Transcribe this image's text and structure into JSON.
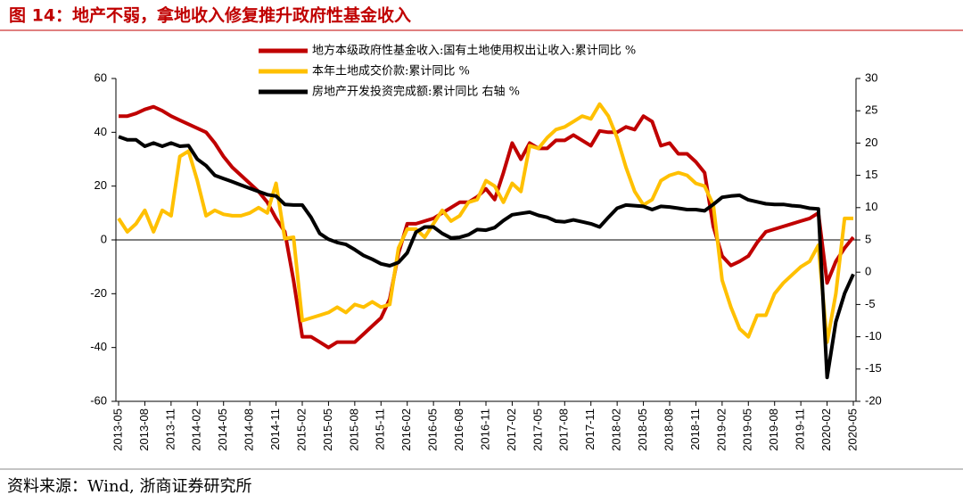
{
  "chart_data": {
    "type": "line",
    "title": "图 14：地产不弱，拿地收入修复推升政府性基金收入",
    "source": "资料来源：Wind, 浙商证券研究所",
    "categories": [
      "2013-05",
      null,
      null,
      "2013-08",
      null,
      null,
      "2013-11",
      null,
      null,
      "2014-02",
      null,
      null,
      "2014-05",
      null,
      null,
      "2014-08",
      null,
      null,
      "2014-11",
      null,
      null,
      "2015-02",
      null,
      null,
      "2015-05",
      null,
      null,
      "2015-08",
      null,
      null,
      "2015-11",
      null,
      null,
      "2016-02",
      null,
      null,
      "2016-05",
      null,
      null,
      "2016-08",
      null,
      null,
      "2016-11",
      null,
      null,
      "2017-02",
      null,
      null,
      "2017-05",
      null,
      null,
      "2017-08",
      null,
      null,
      "2017-11",
      null,
      null,
      "2018-02",
      null,
      null,
      "2018-05",
      null,
      null,
      "2018-08",
      null,
      null,
      "2018-11",
      null,
      null,
      "2019-02",
      null,
      null,
      "2019-05",
      null,
      null,
      "2019-08",
      null,
      null,
      "2019-11",
      null,
      null,
      "2020-02",
      null,
      null,
      "2020-05"
    ],
    "series": [
      {
        "name": "地方本级政府性基金收入:国有土地使用权出让收入:累计同比 %",
        "color": "#c00000",
        "axis": "y",
        "values": [
          46,
          46,
          47,
          48.5,
          49.5,
          48,
          46,
          44.5,
          43,
          41.5,
          40,
          36,
          31,
          27,
          24,
          21,
          18,
          14,
          8,
          3,
          -15,
          -36,
          -36,
          -38,
          -40,
          -38,
          -38,
          -38,
          -35,
          -32,
          -29,
          -22,
          -5,
          6,
          6,
          7,
          8,
          10,
          12,
          14,
          14,
          16,
          19,
          15,
          25,
          36,
          30,
          36,
          34,
          34,
          37,
          37,
          39,
          37,
          35,
          40.5,
          40,
          40,
          42,
          41,
          46,
          44,
          35,
          36,
          32,
          32,
          29,
          25,
          5,
          -6,
          -9.5,
          -8,
          -6,
          -1,
          3,
          4,
          5,
          6,
          7,
          8,
          10,
          -16,
          -8,
          -3,
          1
        ]
      },
      {
        "name": "本年土地成交价款:累计同比 %",
        "color": "#ffc000",
        "axis": "y",
        "values": [
          8,
          3,
          6,
          11,
          3,
          11,
          9,
          31,
          33,
          22,
          9,
          11,
          9.5,
          9,
          9,
          10,
          12,
          10,
          21,
          0.5,
          1,
          -30,
          -29,
          -28,
          -27,
          -25,
          -27,
          -24,
          -25,
          -23,
          -25,
          -24,
          -3,
          4,
          4,
          1,
          6,
          11,
          7,
          9,
          14,
          15,
          22,
          20,
          14,
          21,
          18,
          35,
          34,
          38,
          41,
          42,
          44,
          46,
          45,
          50.5,
          46,
          38,
          27,
          18,
          13,
          15,
          22,
          24,
          25,
          24,
          21,
          20,
          13,
          -15,
          -25,
          -33,
          -36,
          -28,
          -28,
          -20,
          -16,
          -13,
          -10,
          -8,
          -2,
          -38,
          -20,
          8,
          8
        ]
      },
      {
        "name": "房地产开发投资完成额:累计同比 右轴 %",
        "color": "#000000",
        "axis": "y2",
        "values": [
          21,
          20.5,
          20.5,
          19.5,
          20,
          19.5,
          20,
          19.5,
          19.6,
          17.5,
          16.5,
          15,
          14.5,
          14,
          13.5,
          13,
          12.5,
          12,
          11.8,
          10.5,
          10.4,
          10.4,
          8.5,
          6,
          5.1,
          4.6,
          4.3,
          3.5,
          2.6,
          2,
          1.3,
          1,
          1.5,
          3,
          6.2,
          7,
          7,
          6,
          5.3,
          5.4,
          5.8,
          6.6,
          6.5,
          6.9,
          8,
          8.9,
          9.1,
          9.3,
          8.8,
          8.5,
          7.9,
          7.8,
          8.1,
          7.8,
          7.5,
          7,
          8.5,
          9.9,
          10.4,
          10.3,
          10.2,
          9.7,
          10.2,
          10.1,
          9.9,
          9.7,
          9.7,
          9.5,
          10.5,
          11.6,
          11.8,
          11.9,
          11.2,
          10.9,
          10.6,
          10.5,
          10.5,
          10.3,
          10.2,
          9.9,
          9.8,
          -16.3,
          -7.7,
          -3.3,
          -0.3
        ]
      }
    ],
    "ylim": [
      -60,
      60
    ],
    "yticks": [
      60,
      40,
      20,
      0,
      -20,
      -40,
      -60
    ],
    "y2lim": [
      -20,
      30
    ],
    "y2ticks": [
      30,
      25,
      20,
      15,
      10,
      5,
      0,
      -5,
      -10,
      -15,
      -20
    ]
  }
}
